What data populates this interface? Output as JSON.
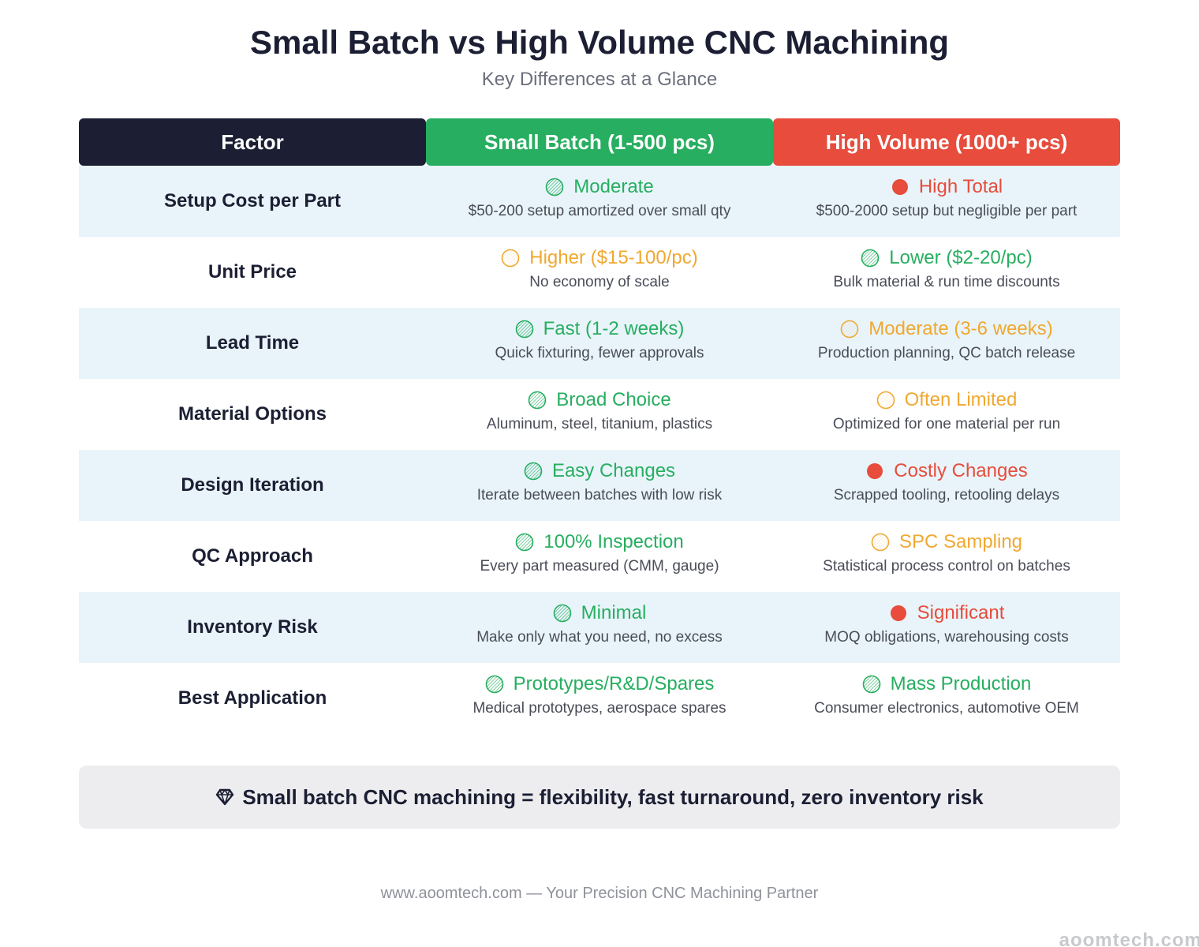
{
  "title": "Small Batch vs High Volume CNC Machining",
  "subtitle": "Key Differences at a Glance",
  "colors": {
    "good": "#27ae60",
    "medium": "#f0a830",
    "bad": "#e74c3c",
    "factor_header": "#1c1f33",
    "small_header": "#27ae60",
    "high_header": "#e74c3c",
    "row_shade": "#e8f4fa"
  },
  "headers": [
    "Factor",
    "Small Batch (1-500 pcs)",
    "High Volume (1000+ pcs)"
  ],
  "chart_data": {
    "type": "table",
    "columns": [
      "Factor",
      "Small Batch (1-500 pcs)",
      "High Volume (1000+ pcs)"
    ],
    "rows": [
      {
        "factor": "Setup Cost per Part",
        "small": {
          "rating": "good",
          "label": "Moderate",
          "note": "$50-200 setup amortized over small qty"
        },
        "high": {
          "rating": "bad",
          "label": "High Total",
          "note": "$500-2000 setup but negligible per part"
        }
      },
      {
        "factor": "Unit Price",
        "small": {
          "rating": "medium",
          "label": "Higher ($15-100/pc)",
          "note": "No economy of scale"
        },
        "high": {
          "rating": "good",
          "label": "Lower ($2-20/pc)",
          "note": "Bulk material & run time discounts"
        }
      },
      {
        "factor": "Lead Time",
        "small": {
          "rating": "good",
          "label": "Fast (1-2 weeks)",
          "note": "Quick fixturing, fewer approvals"
        },
        "high": {
          "rating": "medium",
          "label": "Moderate (3-6 weeks)",
          "note": "Production planning, QC batch release"
        }
      },
      {
        "factor": "Material Options",
        "small": {
          "rating": "good",
          "label": "Broad Choice",
          "note": "Aluminum, steel, titanium, plastics"
        },
        "high": {
          "rating": "medium",
          "label": "Often Limited",
          "note": "Optimized for one material per run"
        }
      },
      {
        "factor": "Design Iteration",
        "small": {
          "rating": "good",
          "label": "Easy Changes",
          "note": "Iterate between batches with low risk"
        },
        "high": {
          "rating": "bad",
          "label": "Costly Changes",
          "note": "Scrapped tooling, retooling delays"
        }
      },
      {
        "factor": "QC Approach",
        "small": {
          "rating": "good",
          "label": "100% Inspection",
          "note": "Every part measured (CMM, gauge)"
        },
        "high": {
          "rating": "medium",
          "label": "SPC Sampling",
          "note": "Statistical process control on batches"
        }
      },
      {
        "factor": "Inventory Risk",
        "small": {
          "rating": "good",
          "label": "Minimal",
          "note": "Make only what you need, no excess"
        },
        "high": {
          "rating": "bad",
          "label": "Significant",
          "note": "MOQ obligations, warehousing costs"
        }
      },
      {
        "factor": "Best Application",
        "small": {
          "rating": "good",
          "label": "Prototypes/R&D/Spares",
          "note": "Medical prototypes, aerospace spares"
        },
        "high": {
          "rating": "good",
          "label": "Mass Production",
          "note": "Consumer electronics, automotive OEM"
        }
      }
    ]
  },
  "summary": {
    "icon": "gem-icon",
    "text": "Small batch CNC machining = flexibility, fast turnaround, zero inventory risk"
  },
  "footer": "www.aoomtech.com — Your Precision CNC Machining Partner",
  "watermark": "aoomtech.com"
}
